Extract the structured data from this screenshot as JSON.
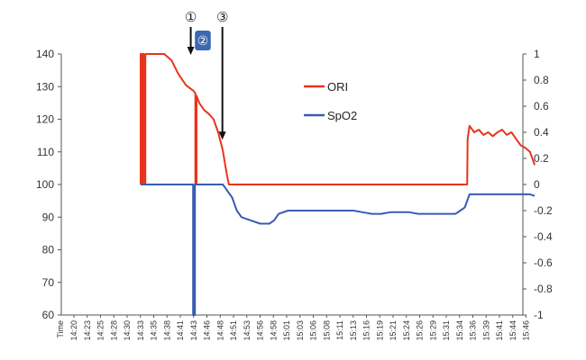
{
  "chart_data": {
    "type": "line",
    "xlabel": "Time",
    "x_ticks": [
      "14:20",
      "14:23",
      "14:25",
      "14:28",
      "14:30",
      "14:33",
      "14:35",
      "14:38",
      "14:41",
      "14:43",
      "14:46",
      "14:48",
      "14:51",
      "14:53",
      "14:56",
      "14:58",
      "15:01",
      "15:03",
      "15:06",
      "15:08",
      "15:11",
      "15:13",
      "15:16",
      "15:19",
      "15:21",
      "15:24",
      "15:26",
      "15:29",
      "15:31",
      "15:34",
      "15:36",
      "15:39",
      "15:41",
      "15:44",
      "15:46"
    ],
    "left_axis": {
      "ylim": [
        60,
        140
      ],
      "ticks": [
        "140",
        "130",
        "120",
        "110",
        "100",
        "90",
        "80",
        "70",
        "60"
      ]
    },
    "right_axis": {
      "ylim": [
        -1,
        1
      ],
      "ticks": [
        "1",
        "0.8",
        "0.6",
        "0.4",
        "0.2",
        "0",
        "-0.2",
        "-0.4",
        "-0.6",
        "-0.8",
        "-1"
      ]
    },
    "grid": false,
    "legend": {
      "position": "top-center"
    },
    "series": [
      {
        "name": "ORI",
        "axis": "right",
        "color": "#e8341c",
        "points": [
          [
            14.33,
            0.0
          ],
          [
            14.33,
            1.0
          ],
          [
            14.6,
            1.0
          ],
          [
            14.6,
            0.0
          ],
          [
            14.8,
            0.0
          ],
          [
            14.8,
            1.0
          ],
          [
            14.95,
            1.0
          ],
          [
            14.95,
            0.0
          ],
          [
            15.35,
            0.0
          ],
          [
            15.35,
            1.0
          ],
          [
            19.4,
            1.0
          ],
          [
            21.0,
            0.95
          ],
          [
            22.4,
            0.85
          ],
          [
            24.1,
            0.76
          ],
          [
            25.6,
            0.72
          ],
          [
            26.1,
            0.7
          ],
          [
            26.1,
            0.0
          ],
          [
            26.35,
            0.0
          ],
          [
            26.35,
            0.68
          ],
          [
            27.0,
            0.62
          ],
          [
            28.0,
            0.57
          ],
          [
            29.0,
            0.54
          ],
          [
            30.0,
            0.5
          ],
          [
            31.0,
            0.4
          ],
          [
            32.0,
            0.26
          ],
          [
            32.5,
            0.15
          ],
          [
            33.0,
            0.05
          ],
          [
            33.3,
            0.0
          ],
          [
            84.5,
            0.0
          ],
          [
            84.6,
            0.35
          ],
          [
            85.0,
            0.45
          ],
          [
            86.0,
            0.4
          ],
          [
            87.0,
            0.42
          ],
          [
            88.0,
            0.38
          ],
          [
            89.0,
            0.4
          ],
          [
            90.0,
            0.37
          ],
          [
            91.0,
            0.4
          ],
          [
            92.0,
            0.42
          ],
          [
            93.0,
            0.38
          ],
          [
            94.0,
            0.4
          ],
          [
            95.0,
            0.35
          ],
          [
            96.0,
            0.3
          ],
          [
            97.0,
            0.28
          ],
          [
            98.0,
            0.25
          ],
          [
            98.5,
            0.2
          ],
          [
            99.0,
            0.15
          ]
        ]
      },
      {
        "name": "SpO2",
        "axis": "left",
        "color": "#3a5bb5",
        "points": [
          [
            14.33,
            100
          ],
          [
            25.6,
            100
          ],
          [
            25.6,
            60
          ],
          [
            26.0,
            60
          ],
          [
            26.0,
            100
          ],
          [
            32.0,
            100
          ],
          [
            33.0,
            98
          ],
          [
            34.0,
            96
          ],
          [
            35.0,
            92
          ],
          [
            36.0,
            90
          ],
          [
            38.0,
            89
          ],
          [
            40.0,
            88
          ],
          [
            42.0,
            88
          ],
          [
            43.0,
            89
          ],
          [
            44.0,
            91
          ],
          [
            46.0,
            92
          ],
          [
            48.0,
            92
          ],
          [
            50.0,
            92
          ],
          [
            52.0,
            92
          ],
          [
            54.0,
            92
          ],
          [
            56.0,
            92
          ],
          [
            58.0,
            92
          ],
          [
            60.0,
            92
          ],
          [
            62.0,
            91.5
          ],
          [
            64.0,
            91
          ],
          [
            66.0,
            91
          ],
          [
            68.0,
            91.5
          ],
          [
            70.0,
            91.5
          ],
          [
            72.0,
            91.5
          ],
          [
            74.0,
            91
          ],
          [
            76.0,
            91
          ],
          [
            78.0,
            91
          ],
          [
            80.0,
            91
          ],
          [
            82.0,
            91
          ],
          [
            83.0,
            92
          ],
          [
            84.0,
            93
          ],
          [
            85.0,
            97
          ],
          [
            86.0,
            97
          ],
          [
            88.0,
            97
          ],
          [
            90.0,
            97
          ],
          [
            92.0,
            97
          ],
          [
            94.0,
            97
          ],
          [
            96.0,
            97
          ],
          [
            98.0,
            97
          ],
          [
            99.0,
            96.5
          ]
        ]
      }
    ],
    "annotations": [
      {
        "label": "①",
        "x": 25.1,
        "arrow_to_y": 140
      },
      {
        "label": "②",
        "x_range": [
          26.0,
          29.4
        ],
        "style": "badge"
      },
      {
        "label": "③",
        "x": 31.9,
        "arrow_to_y": 114
      }
    ]
  }
}
